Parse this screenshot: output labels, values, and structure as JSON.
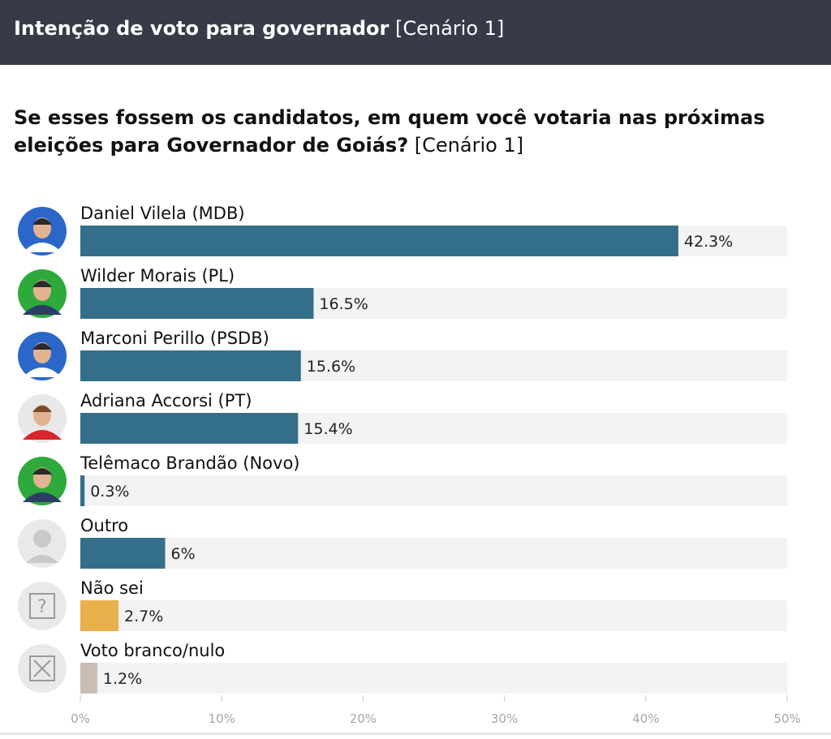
{
  "header": {
    "title_bold": "Intenção de voto para governador",
    "title_suffix": "[Cenário 1]"
  },
  "question": {
    "text_bold": "Se esses fossem os candidatos, em quem você votaria nas próximas eleições para Governador de Goiás?",
    "text_suffix": "[Cenário 1]"
  },
  "colors": {
    "candidate": "#346f8a",
    "undecided": "#e8b04a",
    "null_vote": "#c9bdb4",
    "track": "#f3f3f3"
  },
  "chart_data": {
    "type": "bar",
    "orientation": "horizontal",
    "xlim": [
      0,
      50
    ],
    "ticks": [
      "0%",
      "10%",
      "20%",
      "30%",
      "40%",
      "50%"
    ],
    "tick_values": [
      0,
      10,
      20,
      30,
      40,
      50
    ],
    "categories": [
      "Daniel Vilela (MDB)",
      "Wilder Morais (PL)",
      "Marconi Perillo (PSDB)",
      "Adriana Accorsi (PT)",
      "Telêmaco Brandão (Novo)",
      "Outro",
      "Não sei",
      "Voto branco/nulo"
    ],
    "values": [
      42.3,
      16.5,
      15.6,
      15.4,
      0.3,
      6,
      2.7,
      1.2
    ],
    "value_labels": [
      "42.3%",
      "16.5%",
      "15.6%",
      "15.4%",
      "0.3%",
      "6%",
      "2.7%",
      "1.2%"
    ],
    "bar_color_keys": [
      "candidate",
      "candidate",
      "candidate",
      "candidate",
      "candidate",
      "candidate",
      "undecided",
      "null_vote"
    ],
    "avatars": [
      "avatar-blue",
      "avatar-green",
      "avatar-blue",
      "avatar-red",
      "avatar-green",
      "person-placeholder-icon",
      "question-mark-icon",
      "x-box-icon"
    ]
  }
}
